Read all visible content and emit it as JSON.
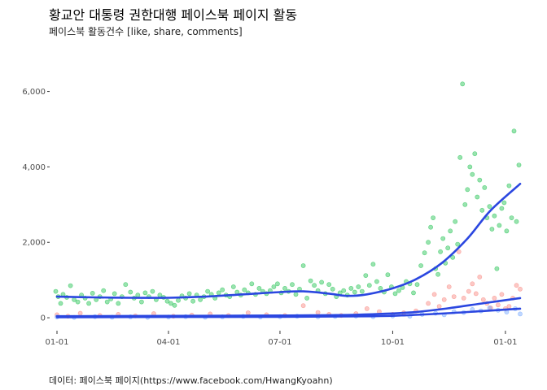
{
  "title": "황교안 대통령 권한대행 페이스북 페이지 활동",
  "subtitle": "페이스북 활동건수 [like, share, comments]",
  "caption": "데이터: 페이스북 페이지(https://www.facebook.com/HwangKyoahn)",
  "chart_data": {
    "type": "scatter",
    "x_axis": {
      "type": "date",
      "range": [
        "2016-01-01",
        "2017-01-15"
      ],
      "ticks": [
        {
          "label": "01-01",
          "date": "2016-01-01"
        },
        {
          "label": "04-01",
          "date": "2016-04-01"
        },
        {
          "label": "07-01",
          "date": "2016-07-01"
        },
        {
          "label": "10-01",
          "date": "2016-10-01"
        },
        {
          "label": "01-01",
          "date": "2017-01-01"
        }
      ]
    },
    "y_axis": {
      "range": [
        -300,
        6400
      ],
      "ticks": [
        {
          "label": "0",
          "value": 0
        },
        {
          "label": "2,000",
          "value": 2000
        },
        {
          "label": "4,000",
          "value": 4000
        },
        {
          "label": "6,000",
          "value": 6000
        }
      ]
    },
    "grid": false,
    "legend": "none",
    "point_alpha": 0.4,
    "series": [
      {
        "color": "#00ba38",
        "points": [
          [
            "2015-12-31",
            700
          ],
          [
            "2016-01-02",
            560
          ],
          [
            "2016-01-04",
            380
          ],
          [
            "2016-01-06",
            620
          ],
          [
            "2016-01-09",
            540
          ],
          [
            "2016-01-12",
            850
          ],
          [
            "2016-01-15",
            480
          ],
          [
            "2016-01-18",
            420
          ],
          [
            "2016-01-21",
            600
          ],
          [
            "2016-01-24",
            520
          ],
          [
            "2016-01-27",
            380
          ],
          [
            "2016-01-30",
            650
          ],
          [
            "2016-02-02",
            480
          ],
          [
            "2016-02-05",
            560
          ],
          [
            "2016-02-08",
            720
          ],
          [
            "2016-02-11",
            420
          ],
          [
            "2016-02-14",
            500
          ],
          [
            "2016-02-17",
            640
          ],
          [
            "2016-02-20",
            380
          ],
          [
            "2016-02-23",
            560
          ],
          [
            "2016-02-26",
            880
          ],
          [
            "2016-03-01",
            680
          ],
          [
            "2016-03-04",
            520
          ],
          [
            "2016-03-07",
            600
          ],
          [
            "2016-03-10",
            420
          ],
          [
            "2016-03-13",
            660
          ],
          [
            "2016-03-16",
            560
          ],
          [
            "2016-03-19",
            700
          ],
          [
            "2016-03-22",
            480
          ],
          [
            "2016-03-25",
            600
          ],
          [
            "2016-03-28",
            540
          ],
          [
            "2016-03-31",
            440
          ],
          [
            "2016-04-03",
            380
          ],
          [
            "2016-04-06",
            330
          ],
          [
            "2016-04-09",
            460
          ],
          [
            "2016-04-12",
            580
          ],
          [
            "2016-04-15",
            520
          ],
          [
            "2016-04-18",
            640
          ],
          [
            "2016-04-21",
            440
          ],
          [
            "2016-04-24",
            600
          ],
          [
            "2016-04-27",
            480
          ],
          [
            "2016-04-30",
            560
          ],
          [
            "2016-05-03",
            700
          ],
          [
            "2016-05-06",
            620
          ],
          [
            "2016-05-09",
            520
          ],
          [
            "2016-05-12",
            660
          ],
          [
            "2016-05-15",
            740
          ],
          [
            "2016-05-18",
            600
          ],
          [
            "2016-05-21",
            560
          ],
          [
            "2016-05-24",
            820
          ],
          [
            "2016-05-27",
            680
          ],
          [
            "2016-05-30",
            600
          ],
          [
            "2016-06-02",
            740
          ],
          [
            "2016-06-05",
            660
          ],
          [
            "2016-06-08",
            900
          ],
          [
            "2016-06-11",
            620
          ],
          [
            "2016-06-14",
            780
          ],
          [
            "2016-06-17",
            700
          ],
          [
            "2016-06-20",
            640
          ],
          [
            "2016-06-23",
            720
          ],
          [
            "2016-06-26",
            820
          ],
          [
            "2016-06-29",
            900
          ],
          [
            "2016-07-02",
            660
          ],
          [
            "2016-07-05",
            780
          ],
          [
            "2016-07-08",
            700
          ],
          [
            "2016-07-11",
            880
          ],
          [
            "2016-07-14",
            620
          ],
          [
            "2016-07-17",
            760
          ],
          [
            "2016-07-20",
            1380
          ],
          [
            "2016-07-23",
            520
          ],
          [
            "2016-07-26",
            980
          ],
          [
            "2016-07-29",
            860
          ],
          [
            "2016-08-01",
            720
          ],
          [
            "2016-08-04",
            940
          ],
          [
            "2016-08-07",
            640
          ],
          [
            "2016-08-10",
            880
          ],
          [
            "2016-08-13",
            760
          ],
          [
            "2016-08-16",
            560
          ],
          [
            "2016-08-19",
            660
          ],
          [
            "2016-08-22",
            720
          ],
          [
            "2016-08-25",
            600
          ],
          [
            "2016-08-28",
            780
          ],
          [
            "2016-08-31",
            680
          ],
          [
            "2016-09-03",
            820
          ],
          [
            "2016-09-06",
            700
          ],
          [
            "2016-09-09",
            1120
          ],
          [
            "2016-09-12",
            860
          ],
          [
            "2016-09-15",
            1420
          ],
          [
            "2016-09-18",
            960
          ],
          [
            "2016-09-21",
            780
          ],
          [
            "2016-09-24",
            680
          ],
          [
            "2016-09-27",
            1140
          ],
          [
            "2016-09-30",
            820
          ],
          [
            "2016-10-03",
            640
          ],
          [
            "2016-10-06",
            720
          ],
          [
            "2016-10-09",
            800
          ],
          [
            "2016-10-12",
            960
          ],
          [
            "2016-10-15",
            900
          ],
          [
            "2016-10-18",
            660
          ],
          [
            "2016-10-21",
            880
          ],
          [
            "2016-10-24",
            1380
          ],
          [
            "2016-10-27",
            1720
          ],
          [
            "2016-10-30",
            2000
          ],
          [
            "2016-11-01",
            2400
          ],
          [
            "2016-11-03",
            2650
          ],
          [
            "2016-11-05",
            1300
          ],
          [
            "2016-11-07",
            1150
          ],
          [
            "2016-11-09",
            1750
          ],
          [
            "2016-11-11",
            2100
          ],
          [
            "2016-11-13",
            1450
          ],
          [
            "2016-11-15",
            1850
          ],
          [
            "2016-11-17",
            2300
          ],
          [
            "2016-11-19",
            1600
          ],
          [
            "2016-11-21",
            2550
          ],
          [
            "2016-11-23",
            1950
          ],
          [
            "2016-11-25",
            4250
          ],
          [
            "2016-11-27",
            6200
          ],
          [
            "2016-11-29",
            3000
          ],
          [
            "2016-12-01",
            3400
          ],
          [
            "2016-12-03",
            4000
          ],
          [
            "2016-12-05",
            3800
          ],
          [
            "2016-12-07",
            4350
          ],
          [
            "2016-12-09",
            3200
          ],
          [
            "2016-12-11",
            3650
          ],
          [
            "2016-12-13",
            2850
          ],
          [
            "2016-12-15",
            3450
          ],
          [
            "2016-12-17",
            2650
          ],
          [
            "2016-12-19",
            2950
          ],
          [
            "2016-12-21",
            2350
          ],
          [
            "2016-12-23",
            2700
          ],
          [
            "2016-12-25",
            1300
          ],
          [
            "2016-12-27",
            2450
          ],
          [
            "2016-12-29",
            2900
          ],
          [
            "2016-12-31",
            3050
          ],
          [
            "2017-01-02",
            2300
          ],
          [
            "2017-01-04",
            3500
          ],
          [
            "2017-01-06",
            2650
          ],
          [
            "2017-01-08",
            4950
          ],
          [
            "2017-01-10",
            2550
          ],
          [
            "2017-01-12",
            4050
          ]
        ]
      },
      {
        "color": "#f8766d",
        "points": [
          [
            "2016-01-01",
            80
          ],
          [
            "2016-01-10",
            40
          ],
          [
            "2016-01-20",
            120
          ],
          [
            "2016-02-05",
            60
          ],
          [
            "2016-02-20",
            90
          ],
          [
            "2016-03-05",
            50
          ],
          [
            "2016-03-20",
            110
          ],
          [
            "2016-04-05",
            40
          ],
          [
            "2016-04-20",
            70
          ],
          [
            "2016-05-05",
            100
          ],
          [
            "2016-05-20",
            60
          ],
          [
            "2016-06-05",
            130
          ],
          [
            "2016-06-20",
            80
          ],
          [
            "2016-07-05",
            60
          ],
          [
            "2016-07-20",
            320
          ],
          [
            "2016-08-01",
            140
          ],
          [
            "2016-08-10",
            90
          ],
          [
            "2016-08-20",
            60
          ],
          [
            "2016-09-01",
            110
          ],
          [
            "2016-09-10",
            240
          ],
          [
            "2016-09-20",
            160
          ],
          [
            "2016-10-01",
            90
          ],
          [
            "2016-10-10",
            130
          ],
          [
            "2016-10-20",
            180
          ],
          [
            "2016-10-30",
            380
          ],
          [
            "2016-11-04",
            620
          ],
          [
            "2016-11-08",
            300
          ],
          [
            "2016-11-12",
            480
          ],
          [
            "2016-11-16",
            820
          ],
          [
            "2016-11-20",
            560
          ],
          [
            "2016-11-24",
            1750
          ],
          [
            "2016-11-28",
            520
          ],
          [
            "2016-12-02",
            700
          ],
          [
            "2016-12-05",
            900
          ],
          [
            "2016-12-08",
            640
          ],
          [
            "2016-12-11",
            1080
          ],
          [
            "2016-12-14",
            480
          ],
          [
            "2016-12-17",
            380
          ],
          [
            "2016-12-20",
            260
          ],
          [
            "2016-12-23",
            520
          ],
          [
            "2016-12-26",
            340
          ],
          [
            "2016-12-29",
            620
          ],
          [
            "2017-01-01",
            240
          ],
          [
            "2017-01-04",
            300
          ],
          [
            "2017-01-07",
            520
          ],
          [
            "2017-01-10",
            860
          ],
          [
            "2017-01-13",
            760
          ]
        ]
      },
      {
        "color": "#619cff",
        "points": [
          [
            "2016-01-01",
            20
          ],
          [
            "2016-01-15",
            10
          ],
          [
            "2016-02-01",
            30
          ],
          [
            "2016-02-15",
            15
          ],
          [
            "2016-03-01",
            25
          ],
          [
            "2016-03-15",
            10
          ],
          [
            "2016-04-01",
            20
          ],
          [
            "2016-04-15",
            30
          ],
          [
            "2016-05-01",
            15
          ],
          [
            "2016-05-15",
            25
          ],
          [
            "2016-06-01",
            35
          ],
          [
            "2016-06-15",
            20
          ],
          [
            "2016-07-01",
            30
          ],
          [
            "2016-07-15",
            40
          ],
          [
            "2016-08-01",
            25
          ],
          [
            "2016-08-15",
            35
          ],
          [
            "2016-09-01",
            45
          ],
          [
            "2016-09-15",
            30
          ],
          [
            "2016-10-01",
            50
          ],
          [
            "2016-10-15",
            40
          ],
          [
            "2016-10-25",
            90
          ],
          [
            "2016-11-05",
            120
          ],
          [
            "2016-11-12",
            80
          ],
          [
            "2016-11-20",
            160
          ],
          [
            "2016-11-28",
            140
          ],
          [
            "2016-12-05",
            220
          ],
          [
            "2016-12-12",
            180
          ],
          [
            "2016-12-19",
            260
          ],
          [
            "2016-12-26",
            200
          ],
          [
            "2017-01-02",
            150
          ],
          [
            "2017-01-09",
            240
          ],
          [
            "2017-01-13",
            100
          ]
        ]
      }
    ],
    "smooth_lines": [
      {
        "color": "#2b47e0",
        "points": [
          [
            "2016-01-01",
            560
          ],
          [
            "2016-02-01",
            540
          ],
          [
            "2016-03-01",
            530
          ],
          [
            "2016-04-01",
            530
          ],
          [
            "2016-05-01",
            560
          ],
          [
            "2016-06-01",
            620
          ],
          [
            "2016-07-01",
            680
          ],
          [
            "2016-07-20",
            700
          ],
          [
            "2016-08-10",
            640
          ],
          [
            "2016-08-25",
            580
          ],
          [
            "2016-09-10",
            620
          ],
          [
            "2016-10-01",
            780
          ],
          [
            "2016-10-20",
            1020
          ],
          [
            "2016-11-10",
            1450
          ],
          [
            "2016-12-01",
            2100
          ],
          [
            "2016-12-20",
            2850
          ],
          [
            "2017-01-13",
            3550
          ]
        ]
      },
      {
        "color": "#2b47e0",
        "points": [
          [
            "2016-01-01",
            40
          ],
          [
            "2016-04-01",
            50
          ],
          [
            "2016-07-01",
            60
          ],
          [
            "2016-09-01",
            80
          ],
          [
            "2016-10-15",
            140
          ],
          [
            "2016-11-15",
            250
          ],
          [
            "2016-12-15",
            390
          ],
          [
            "2017-01-13",
            520
          ]
        ]
      },
      {
        "color": "#2b47e0",
        "points": [
          [
            "2016-01-01",
            15
          ],
          [
            "2016-04-01",
            20
          ],
          [
            "2016-07-01",
            25
          ],
          [
            "2016-09-15",
            40
          ],
          [
            "2016-10-15",
            70
          ],
          [
            "2016-11-15",
            120
          ],
          [
            "2016-12-15",
            180
          ],
          [
            "2017-01-13",
            240
          ]
        ]
      }
    ]
  }
}
